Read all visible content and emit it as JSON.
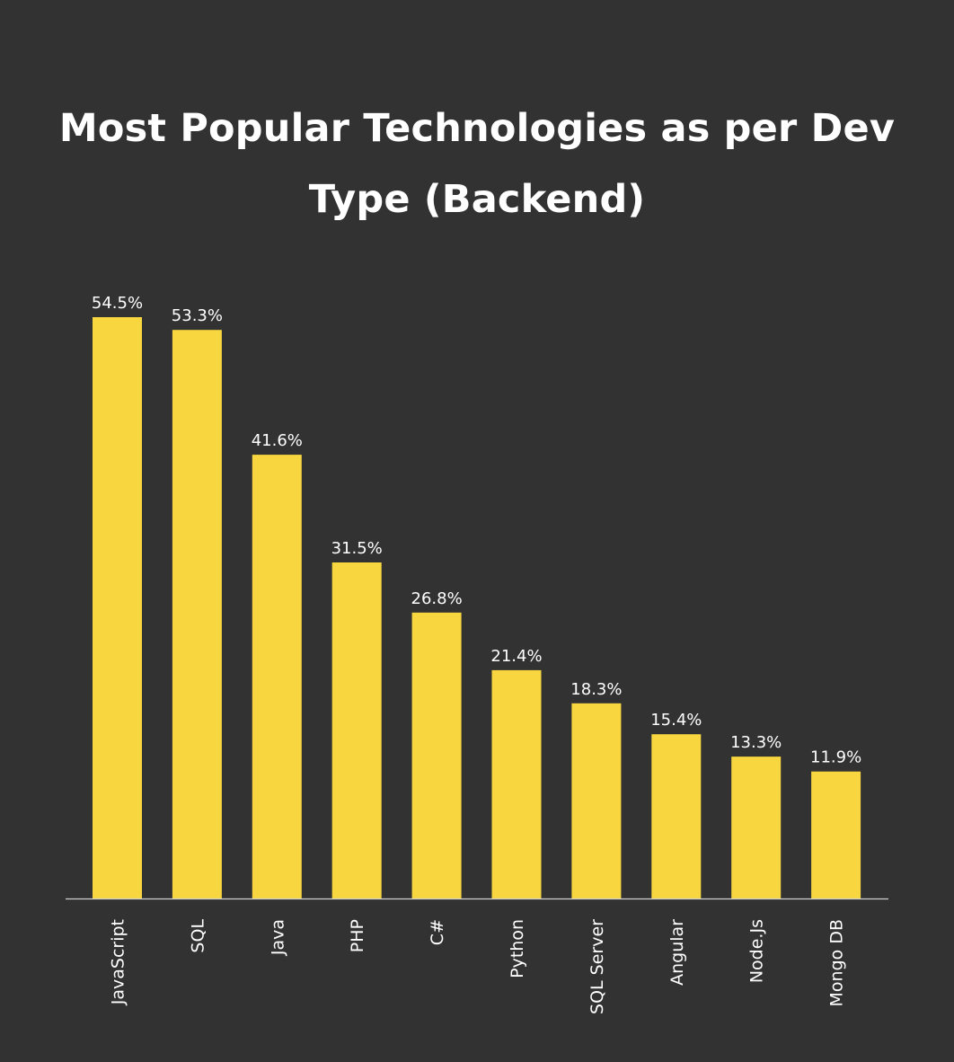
{
  "chart_data": {
    "type": "bar",
    "title": "Most Popular Technologies as per Dev Type (Backend)",
    "categories": [
      "JavaScript",
      "SQL",
      "Java",
      "PHP",
      "C#",
      "Python",
      "SQL Server",
      "Angular",
      "Node.Js",
      "Mongo DB"
    ],
    "values": [
      54.5,
      53.3,
      41.6,
      31.5,
      26.8,
      21.4,
      18.3,
      15.4,
      13.3,
      11.9
    ],
    "data_labels": [
      "54.5%",
      "53.3%",
      "41.6%",
      "31.5%",
      "26.8%",
      "21.4%",
      "18.3%",
      "15.4%",
      "13.3%",
      "11.9%"
    ],
    "ylim": [
      0,
      55
    ],
    "grid": false,
    "legend": "none",
    "colors": {
      "background": "#333232",
      "bar": "#f7d63f",
      "axis": "#cfcfcf",
      "text": "#ffffff"
    }
  }
}
